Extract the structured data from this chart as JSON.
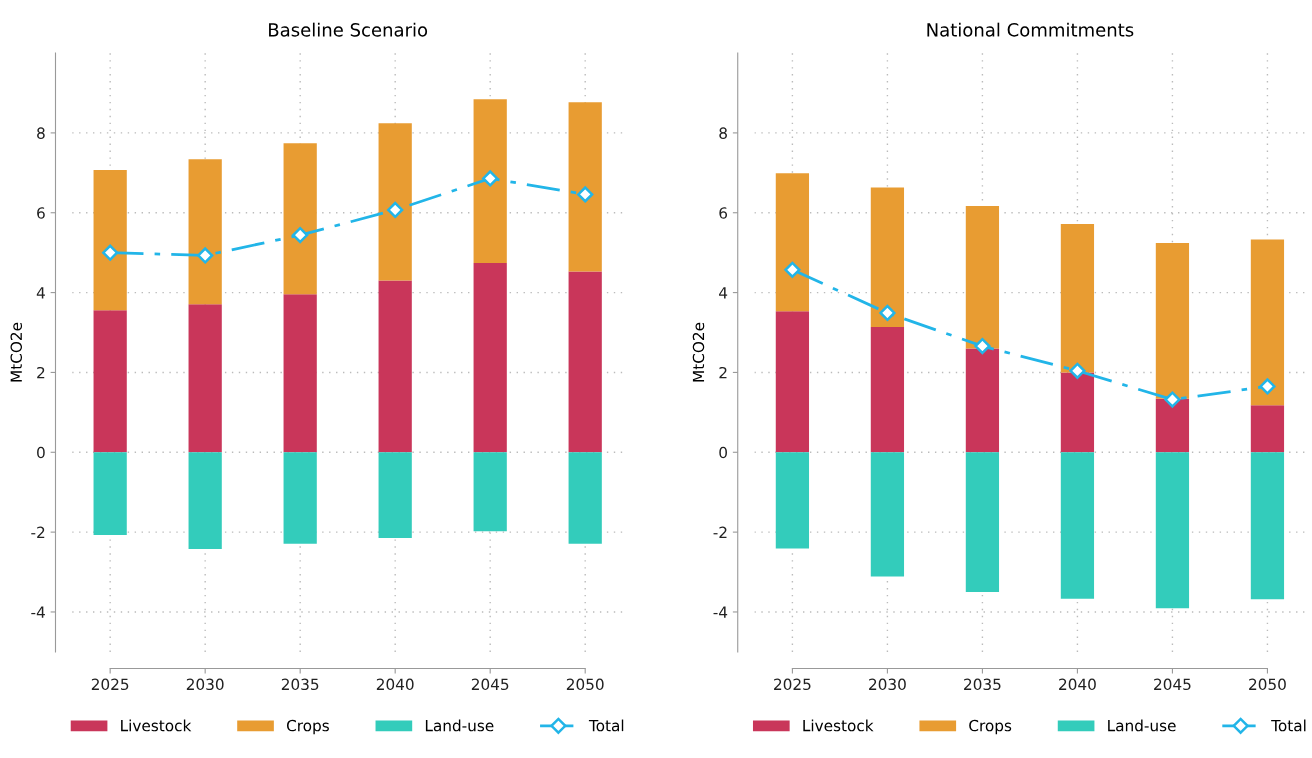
{
  "chart_data": [
    {
      "type": "bar",
      "title": "Baseline Scenario",
      "ylabel": "MtCO2e",
      "categories": [
        "2025",
        "2030",
        "2035",
        "2040",
        "2045",
        "2050"
      ],
      "stacked": true,
      "ylim": [
        -5,
        10
      ],
      "yticks": [
        -4,
        -2,
        0,
        2,
        4,
        6,
        8
      ],
      "grid": true,
      "legend": "bottom",
      "series": [
        {
          "name": "Livestock",
          "color": "#c9365a",
          "values": [
            3.56,
            3.71,
            3.96,
            4.3,
            4.74,
            4.53
          ]
        },
        {
          "name": "Crops",
          "color": "#e89c32",
          "values": [
            3.51,
            3.63,
            3.78,
            3.94,
            4.1,
            4.24
          ]
        },
        {
          "name": "Land-use",
          "color": "#33ccbb",
          "values": [
            -2.07,
            -2.42,
            -2.29,
            -2.15,
            -1.98,
            -2.29
          ]
        },
        {
          "name": "Total",
          "type": "line",
          "color": "#22b5e8",
          "marker": "diamond",
          "line_style": "dashdot",
          "values": [
            5.0,
            4.93,
            5.44,
            6.07,
            6.86,
            6.46
          ]
        }
      ]
    },
    {
      "type": "bar",
      "title": "National Commitments",
      "ylabel": "MtCO2e",
      "categories": [
        "2025",
        "2030",
        "2035",
        "2040",
        "2045",
        "2050"
      ],
      "stacked": true,
      "ylim": [
        -5,
        10
      ],
      "yticks": [
        -4,
        -2,
        0,
        2,
        4,
        6,
        8
      ],
      "grid": true,
      "legend": "bottom",
      "series": [
        {
          "name": "Livestock",
          "color": "#c9365a",
          "values": [
            3.53,
            3.14,
            2.6,
            2.0,
            1.34,
            1.18
          ]
        },
        {
          "name": "Crops",
          "color": "#e89c32",
          "values": [
            3.46,
            3.49,
            3.57,
            3.72,
            3.9,
            4.15
          ]
        },
        {
          "name": "Land-use",
          "color": "#33ccbb",
          "values": [
            -2.41,
            -3.11,
            -3.5,
            -3.67,
            -3.91,
            -3.68
          ]
        },
        {
          "name": "Total",
          "type": "line",
          "color": "#22b5e8",
          "marker": "diamond",
          "line_style": "dashdot",
          "values": [
            4.57,
            3.49,
            2.66,
            2.04,
            1.32,
            1.65
          ]
        }
      ]
    }
  ]
}
